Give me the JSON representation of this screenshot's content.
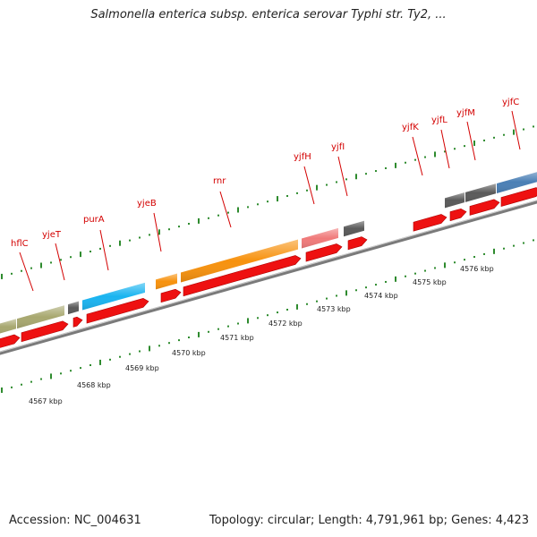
{
  "title": "Salmonella enterica subsp. enterica serovar Typhi str. Ty2, ...",
  "footer": {
    "accession": "Accession: NC_004631",
    "topology": "Topology: circular; Length: 4,791,961 bp; Genes: 4,423"
  },
  "colors": {
    "cds_strand": "#ee1111",
    "backbone": "#888888",
    "tick": "#2e8b2e",
    "label": "#d30000"
  },
  "features": [
    {
      "name": "hflC",
      "color": "#a8a870",
      "label": "hflC"
    },
    {
      "name": "yjeT",
      "color": "#a8a870",
      "label": "yjeT"
    },
    {
      "name": "purA",
      "color": "#1ab4f0",
      "label": "purA"
    },
    {
      "name": "yjeB",
      "color": "#f7920e",
      "label": "yjeB"
    },
    {
      "name": "rnr",
      "color": "#f7920e",
      "label": "rnr"
    },
    {
      "name": "yjfH",
      "color": "#f07a7a",
      "label": "yjfH"
    },
    {
      "name": "yjfI",
      "color": "#5a5a5a",
      "label": "yjfI"
    },
    {
      "name": "yjfK",
      "color": "#5a5a5a",
      "label": "yjfK"
    },
    {
      "name": "yjfL",
      "color": "#5a5a5a",
      "label": "yjfL"
    },
    {
      "name": "yjfM",
      "color": "#5a5a5a",
      "label": "yjfM"
    },
    {
      "name": "yjfC",
      "color": "#4a7fb5",
      "label": "yjfC"
    }
  ],
  "kbp_labels": [
    "4567 kbp",
    "4568 kbp",
    "4569 kbp",
    "4570 kbp",
    "4571 kbp",
    "4572 kbp",
    "4573 kbp",
    "4574 kbp",
    "4575 kbp",
    "4576 kbp"
  ]
}
